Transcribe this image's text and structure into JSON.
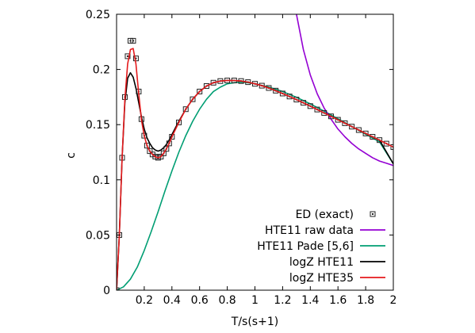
{
  "chart_data": {
    "type": "line",
    "title": "",
    "xlabel": "T/s(s+1)",
    "ylabel": "c",
    "xlim": [
      0,
      2
    ],
    "ylim": [
      0,
      0.25
    ],
    "xticks": [
      {
        "value": 0.2,
        "label": "0.2"
      },
      {
        "value": 0.4,
        "label": "0.4"
      },
      {
        "value": 0.6,
        "label": "0.6"
      },
      {
        "value": 0.8,
        "label": "0.8"
      },
      {
        "value": 1.0,
        "label": "1"
      },
      {
        "value": 1.2,
        "label": "1.2"
      },
      {
        "value": 1.4,
        "label": "1.4"
      },
      {
        "value": 1.6,
        "label": "1.6"
      },
      {
        "value": 1.8,
        "label": "1.8"
      },
      {
        "value": 2.0,
        "label": "2"
      }
    ],
    "yticks": [
      {
        "value": 0,
        "label": "0"
      },
      {
        "value": 0.05,
        "label": "0.05"
      },
      {
        "value": 0.1,
        "label": "0.1"
      },
      {
        "value": 0.15,
        "label": "0.15"
      },
      {
        "value": 0.2,
        "label": "0.2"
      },
      {
        "value": 0.25,
        "label": "0.25"
      }
    ],
    "grid": false,
    "legend_position": "bottom-right",
    "series": [
      {
        "name": "ED (exact)",
        "style": "markers",
        "color": "#222222",
        "x": [
          0.0,
          0.02,
          0.04,
          0.06,
          0.08,
          0.1,
          0.12,
          0.14,
          0.16,
          0.18,
          0.2,
          0.22,
          0.24,
          0.26,
          0.28,
          0.3,
          0.32,
          0.34,
          0.36,
          0.38,
          0.4,
          0.45,
          0.5,
          0.55,
          0.6,
          0.65,
          0.7,
          0.75,
          0.8,
          0.85,
          0.9,
          0.95,
          1.0,
          1.05,
          1.1,
          1.15,
          1.2,
          1.25,
          1.3,
          1.35,
          1.4,
          1.45,
          1.5,
          1.55,
          1.6,
          1.65,
          1.7,
          1.75,
          1.8,
          1.85,
          1.9,
          1.95,
          2.0
        ],
        "y": [
          0.0,
          0.05,
          0.12,
          0.175,
          0.212,
          0.226,
          0.226,
          0.21,
          0.18,
          0.155,
          0.14,
          0.131,
          0.126,
          0.123,
          0.121,
          0.12,
          0.121,
          0.124,
          0.128,
          0.133,
          0.139,
          0.152,
          0.164,
          0.173,
          0.18,
          0.185,
          0.188,
          0.1895,
          0.19,
          0.19,
          0.1895,
          0.1885,
          0.187,
          0.1853,
          0.1832,
          0.1808,
          0.1782,
          0.1755,
          0.1727,
          0.1698,
          0.1668,
          0.1637,
          0.1606,
          0.1575,
          0.1544,
          0.1513,
          0.1482,
          0.1451,
          0.142,
          0.139,
          0.136,
          0.1328,
          0.1297
        ]
      },
      {
        "name": "HTE11 raw data",
        "style": "line",
        "color": "#9400d3",
        "x": [
          1.3,
          1.35,
          1.4,
          1.45,
          1.5,
          1.55,
          1.6,
          1.65,
          1.7,
          1.75,
          1.8,
          1.85,
          1.9,
          1.95,
          2.0
        ],
        "y": [
          0.25,
          0.218,
          0.195,
          0.178,
          0.165,
          0.155,
          0.146,
          0.139,
          0.133,
          0.128,
          0.124,
          0.12,
          0.117,
          0.115,
          0.113
        ]
      },
      {
        "name": "HTE11 Pade [5,6]",
        "style": "line",
        "color": "#009e73",
        "x": [
          0.0,
          0.05,
          0.1,
          0.15,
          0.2,
          0.25,
          0.3,
          0.35,
          0.4,
          0.45,
          0.5,
          0.55,
          0.6,
          0.65,
          0.7,
          0.75,
          0.8,
          0.85,
          0.9,
          0.95,
          1.0,
          1.05,
          1.1,
          1.2,
          1.3,
          1.4,
          1.5,
          1.6,
          1.7,
          1.8,
          1.9,
          2.0
        ],
        "y": [
          0.0,
          0.003,
          0.01,
          0.021,
          0.036,
          0.053,
          0.071,
          0.09,
          0.108,
          0.125,
          0.14,
          0.153,
          0.164,
          0.173,
          0.18,
          0.184,
          0.187,
          0.188,
          0.1885,
          0.188,
          0.187,
          0.1855,
          0.184,
          0.18,
          0.1748,
          0.1688,
          0.1622,
          0.1553,
          0.1483,
          0.1413,
          0.1345,
          0.1145
        ]
      },
      {
        "name": "logZ HTE11",
        "style": "line",
        "color": "#000000",
        "x": [
          0.0,
          0.02,
          0.04,
          0.06,
          0.08,
          0.1,
          0.12,
          0.14,
          0.16,
          0.18,
          0.2,
          0.22,
          0.24,
          0.26,
          0.28,
          0.3,
          0.32,
          0.34,
          0.36,
          0.38,
          0.4,
          0.45,
          0.5,
          0.55,
          0.6,
          0.65,
          0.7,
          0.75,
          0.8,
          0.85,
          0.9,
          0.95,
          1.0,
          1.05,
          1.1,
          1.2,
          1.3,
          1.4,
          1.5,
          1.6,
          1.7,
          1.8,
          1.9,
          2.0
        ],
        "y": [
          0.0,
          0.05,
          0.12,
          0.17,
          0.192,
          0.197,
          0.193,
          0.183,
          0.17,
          0.157,
          0.146,
          0.138,
          0.133,
          0.129,
          0.127,
          0.126,
          0.127,
          0.129,
          0.132,
          0.136,
          0.141,
          0.153,
          0.164,
          0.173,
          0.18,
          0.185,
          0.188,
          0.1895,
          0.19,
          0.19,
          0.1895,
          0.1885,
          0.187,
          0.1853,
          0.1832,
          0.1782,
          0.1727,
          0.1668,
          0.1606,
          0.1544,
          0.1482,
          0.142,
          0.136,
          0.1145
        ]
      },
      {
        "name": "logZ HTE35",
        "style": "line",
        "color": "#e41a1c",
        "x": [
          0.0,
          0.02,
          0.04,
          0.06,
          0.08,
          0.1,
          0.12,
          0.14,
          0.16,
          0.18,
          0.2,
          0.22,
          0.24,
          0.26,
          0.28,
          0.3,
          0.32,
          0.34,
          0.36,
          0.38,
          0.4,
          0.45,
          0.5,
          0.55,
          0.6,
          0.65,
          0.7,
          0.75,
          0.8,
          0.85,
          0.9,
          0.95,
          1.0,
          1.05,
          1.1,
          1.15,
          1.2,
          1.25,
          1.3,
          1.35,
          1.4,
          1.45,
          1.5,
          1.55,
          1.6,
          1.65,
          1.7,
          1.75,
          1.8,
          1.85,
          1.9,
          1.95,
          2.0
        ],
        "y": [
          0.0,
          0.05,
          0.12,
          0.173,
          0.205,
          0.218,
          0.219,
          0.205,
          0.178,
          0.154,
          0.14,
          0.131,
          0.126,
          0.123,
          0.121,
          0.12,
          0.121,
          0.124,
          0.128,
          0.133,
          0.139,
          0.152,
          0.164,
          0.173,
          0.18,
          0.185,
          0.188,
          0.1895,
          0.19,
          0.19,
          0.1895,
          0.1885,
          0.187,
          0.1853,
          0.1832,
          0.1808,
          0.1782,
          0.1755,
          0.1727,
          0.1698,
          0.1668,
          0.1637,
          0.1606,
          0.1575,
          0.1544,
          0.1513,
          0.1482,
          0.1451,
          0.142,
          0.139,
          0.136,
          0.1328,
          0.1297
        ]
      }
    ]
  }
}
